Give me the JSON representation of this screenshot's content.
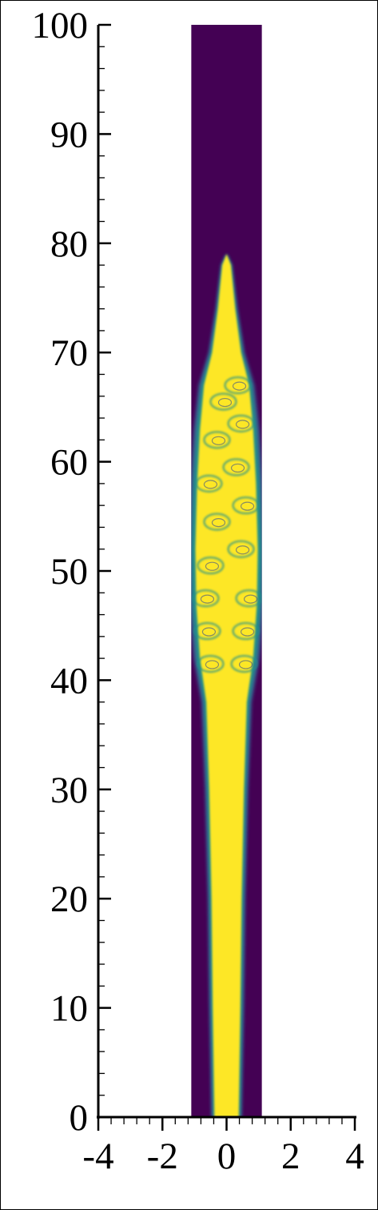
{
  "chart_data": {
    "type": "heatmap",
    "title": "",
    "xlabel": "",
    "ylabel": "",
    "xlim": [
      -4,
      4
    ],
    "ylim": [
      0,
      100
    ],
    "domain_x": [
      -1.1,
      1.1
    ],
    "x_ticks": [
      -4,
      -2,
      0,
      2,
      4
    ],
    "x_tick_labels": [
      "-4",
      "-2",
      "0",
      "2",
      "4"
    ],
    "y_ticks": [
      0,
      10,
      20,
      30,
      40,
      50,
      60,
      70,
      80,
      90,
      100
    ],
    "y_tick_labels": [
      "0",
      "10",
      "20",
      "30",
      "40",
      "50",
      "60",
      "70",
      "80",
      "90",
      "100"
    ],
    "x_minor_step": 0.4,
    "y_minor_step": 2,
    "grid": false,
    "colormap": "viridis",
    "colors": {
      "background": "#440154",
      "high": "#fde725",
      "mid": "#21918c",
      "edge": "#3b528b"
    },
    "jet_half_width": [
      {
        "y": 0,
        "w": 0.42
      },
      {
        "y": 10,
        "w": 0.48
      },
      {
        "y": 20,
        "w": 0.52
      },
      {
        "y": 30,
        "w": 0.6
      },
      {
        "y": 38,
        "w": 0.7
      },
      {
        "y": 42,
        "w": 0.92
      },
      {
        "y": 47,
        "w": 1.05
      },
      {
        "y": 52,
        "w": 1.08
      },
      {
        "y": 58,
        "w": 1.02
      },
      {
        "y": 63,
        "w": 0.92
      },
      {
        "y": 67,
        "w": 0.78
      },
      {
        "y": 70,
        "w": 0.5
      },
      {
        "y": 74,
        "w": 0.3
      },
      {
        "y": 78,
        "w": 0.15
      },
      {
        "y": 79,
        "w": 0
      }
    ],
    "vortex_rings": [
      {
        "x": -0.5,
        "y": 41.5
      },
      {
        "x": 0.55,
        "y": 41.5
      },
      {
        "x": -0.6,
        "y": 44.5
      },
      {
        "x": 0.6,
        "y": 44.5
      },
      {
        "x": -0.65,
        "y": 47.5
      },
      {
        "x": 0.7,
        "y": 47.5
      },
      {
        "x": -0.5,
        "y": 50.5
      },
      {
        "x": 0.45,
        "y": 52
      },
      {
        "x": -0.3,
        "y": 54.5
      },
      {
        "x": 0.6,
        "y": 56
      },
      {
        "x": -0.55,
        "y": 58
      },
      {
        "x": 0.3,
        "y": 59.5
      },
      {
        "x": -0.3,
        "y": 62
      },
      {
        "x": 0.45,
        "y": 63.5
      },
      {
        "x": -0.1,
        "y": 65.5
      },
      {
        "x": 0.35,
        "y": 67
      }
    ]
  }
}
